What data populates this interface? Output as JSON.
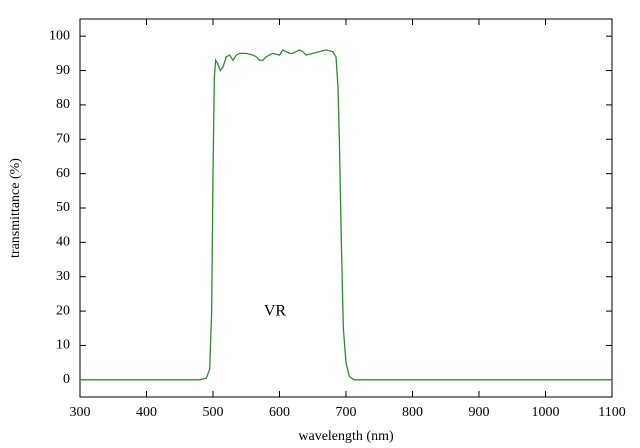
{
  "chart_data": {
    "type": "line",
    "x_label": "wavelength (nm)",
    "y_label": "transmittance (%)",
    "annotations": [
      "VR"
    ],
    "xlim": [
      300,
      1100
    ],
    "xticks": [
      300,
      400,
      500,
      600,
      700,
      800,
      900,
      1000,
      1100
    ],
    "ylim": [
      -5,
      105
    ],
    "yticks": [
      0,
      10,
      20,
      30,
      40,
      50,
      60,
      70,
      80,
      90,
      100
    ],
    "grid": false,
    "x": [
      300,
      480,
      490,
      495,
      498,
      500,
      502,
      504,
      507,
      511,
      515,
      520,
      525,
      530,
      535,
      540,
      550,
      560,
      565,
      570,
      575,
      580,
      590,
      600,
      605,
      610,
      615,
      620,
      630,
      635,
      640,
      650,
      660,
      670,
      680,
      685,
      688,
      690,
      693,
      696,
      700,
      705,
      712,
      1100
    ],
    "series": [
      {
        "color": "#2e8b2e",
        "values": [
          0,
          0,
          0.5,
          3,
          20,
          60,
          88,
          93,
          92,
          90,
          91,
          94,
          94.5,
          93,
          94.5,
          95,
          95,
          94.5,
          94,
          93,
          93,
          94,
          95,
          94.5,
          96,
          95.5,
          95,
          95,
          96,
          95.5,
          94.5,
          95,
          95.5,
          96,
          95.5,
          94,
          85,
          70,
          40,
          15,
          5,
          1,
          0,
          0
        ]
      }
    ]
  }
}
